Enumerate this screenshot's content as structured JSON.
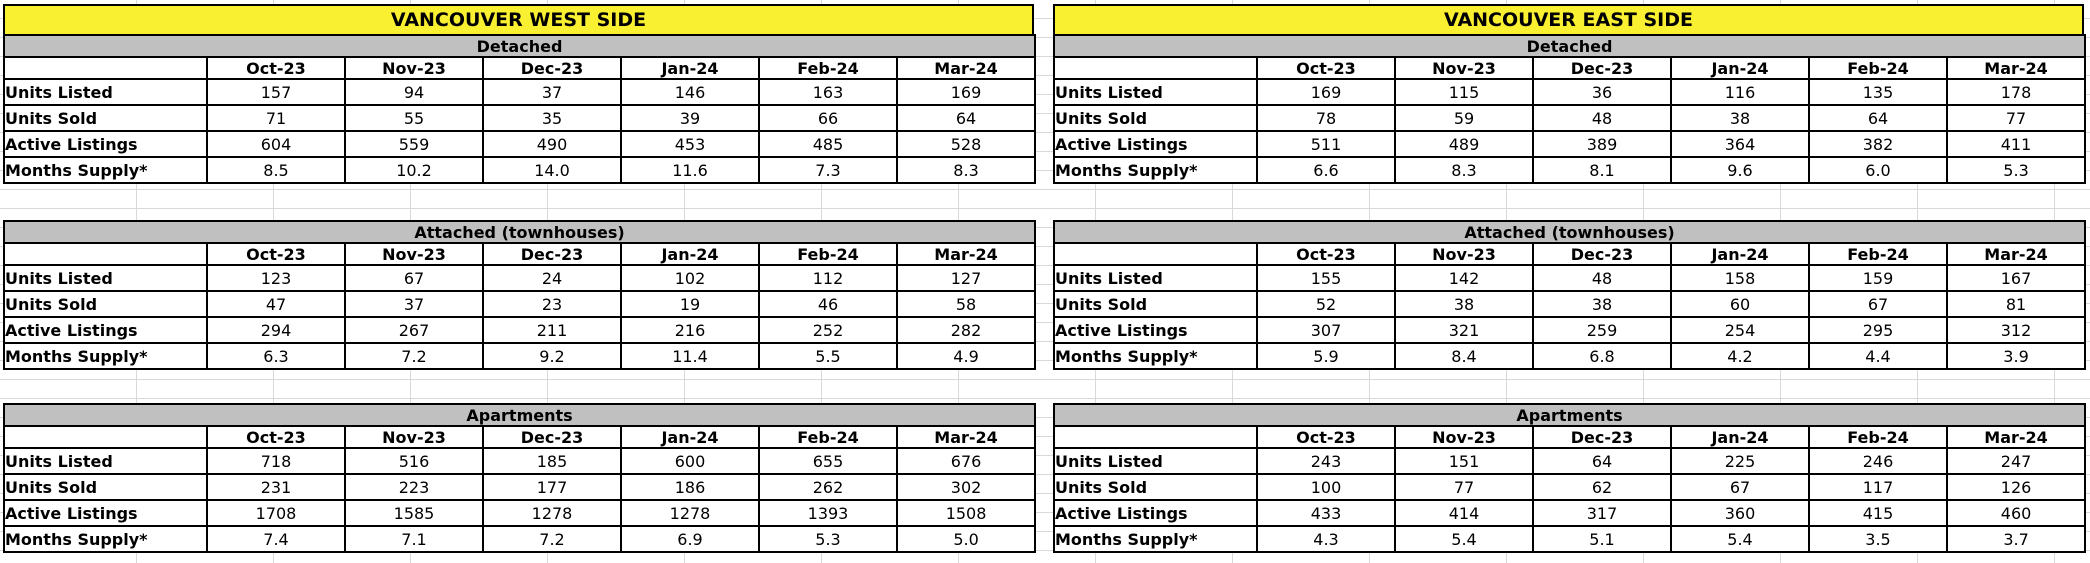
{
  "colors": {
    "title-bg": "#faf032",
    "band-bg": "#c0c0c0",
    "border": "#000000",
    "grid-line": "#d9d9d9",
    "cell-bg": "#ffffff"
  },
  "months": [
    "Oct-23",
    "Nov-23",
    "Dec-23",
    "Jan-24",
    "Feb-24",
    "Mar-24"
  ],
  "sides": [
    {
      "title": "VANCOUVER WEST SIDE",
      "sections": [
        {
          "name": "Detached",
          "rows": [
            {
              "label": "Units Listed",
              "values": [
                "157",
                "94",
                "37",
                "146",
                "163",
                "169"
              ]
            },
            {
              "label": "Units Sold",
              "values": [
                "71",
                "55",
                "35",
                "39",
                "66",
                "64"
              ]
            },
            {
              "label": "Active Listings",
              "values": [
                "604",
                "559",
                "490",
                "453",
                "485",
                "528"
              ]
            },
            {
              "label": "Months Supply*",
              "values": [
                "8.5",
                "10.2",
                "14.0",
                "11.6",
                "7.3",
                "8.3"
              ]
            }
          ]
        },
        {
          "name": "Attached (townhouses)",
          "rows": [
            {
              "label": "Units Listed",
              "values": [
                "123",
                "67",
                "24",
                "102",
                "112",
                "127"
              ]
            },
            {
              "label": "Units Sold",
              "values": [
                "47",
                "37",
                "23",
                "19",
                "46",
                "58"
              ]
            },
            {
              "label": "Active Listings",
              "values": [
                "294",
                "267",
                "211",
                "216",
                "252",
                "282"
              ]
            },
            {
              "label": "Months Supply*",
              "values": [
                "6.3",
                "7.2",
                "9.2",
                "11.4",
                "5.5",
                "4.9"
              ]
            }
          ]
        },
        {
          "name": "Apartments",
          "rows": [
            {
              "label": "Units Listed",
              "values": [
                "718",
                "516",
                "185",
                "600",
                "655",
                "676"
              ]
            },
            {
              "label": "Units Sold",
              "values": [
                "231",
                "223",
                "177",
                "186",
                "262",
                "302"
              ]
            },
            {
              "label": "Active Listings",
              "values": [
                "1708",
                "1585",
                "1278",
                "1278",
                "1393",
                "1508"
              ]
            },
            {
              "label": "Months Supply*",
              "values": [
                "7.4",
                "7.1",
                "7.2",
                "6.9",
                "5.3",
                "5.0"
              ]
            }
          ]
        }
      ]
    },
    {
      "title": "VANCOUVER EAST SIDE",
      "sections": [
        {
          "name": "Detached",
          "rows": [
            {
              "label": "Units Listed",
              "values": [
                "169",
                "115",
                "36",
                "116",
                "135",
                "178"
              ]
            },
            {
              "label": "Units Sold",
              "values": [
                "78",
                "59",
                "48",
                "38",
                "64",
                "77"
              ]
            },
            {
              "label": "Active Listings",
              "values": [
                "511",
                "489",
                "389",
                "364",
                "382",
                "411"
              ]
            },
            {
              "label": "Months Supply*",
              "values": [
                "6.6",
                "8.3",
                "8.1",
                "9.6",
                "6.0",
                "5.3"
              ]
            }
          ]
        },
        {
          "name": "Attached (townhouses)",
          "rows": [
            {
              "label": "Units Listed",
              "values": [
                "155",
                "142",
                "48",
                "158",
                "159",
                "167"
              ]
            },
            {
              "label": "Units Sold",
              "values": [
                "52",
                "38",
                "38",
                "60",
                "67",
                "81"
              ]
            },
            {
              "label": "Active Listings",
              "values": [
                "307",
                "321",
                "259",
                "254",
                "295",
                "312"
              ]
            },
            {
              "label": "Months Supply*",
              "values": [
                "5.9",
                "8.4",
                "6.8",
                "4.2",
                "4.4",
                "3.9"
              ]
            }
          ]
        },
        {
          "name": "Apartments",
          "rows": [
            {
              "label": "Units Listed",
              "values": [
                "243",
                "151",
                "64",
                "225",
                "246",
                "247"
              ]
            },
            {
              "label": "Units Sold",
              "values": [
                "100",
                "77",
                "62",
                "67",
                "117",
                "126"
              ]
            },
            {
              "label": "Active Listings",
              "values": [
                "433",
                "414",
                "317",
                "360",
                "415",
                "460"
              ]
            },
            {
              "label": "Months Supply*",
              "values": [
                "4.3",
                "5.4",
                "5.1",
                "5.4",
                "3.5",
                "3.7"
              ]
            }
          ]
        }
      ]
    }
  ]
}
